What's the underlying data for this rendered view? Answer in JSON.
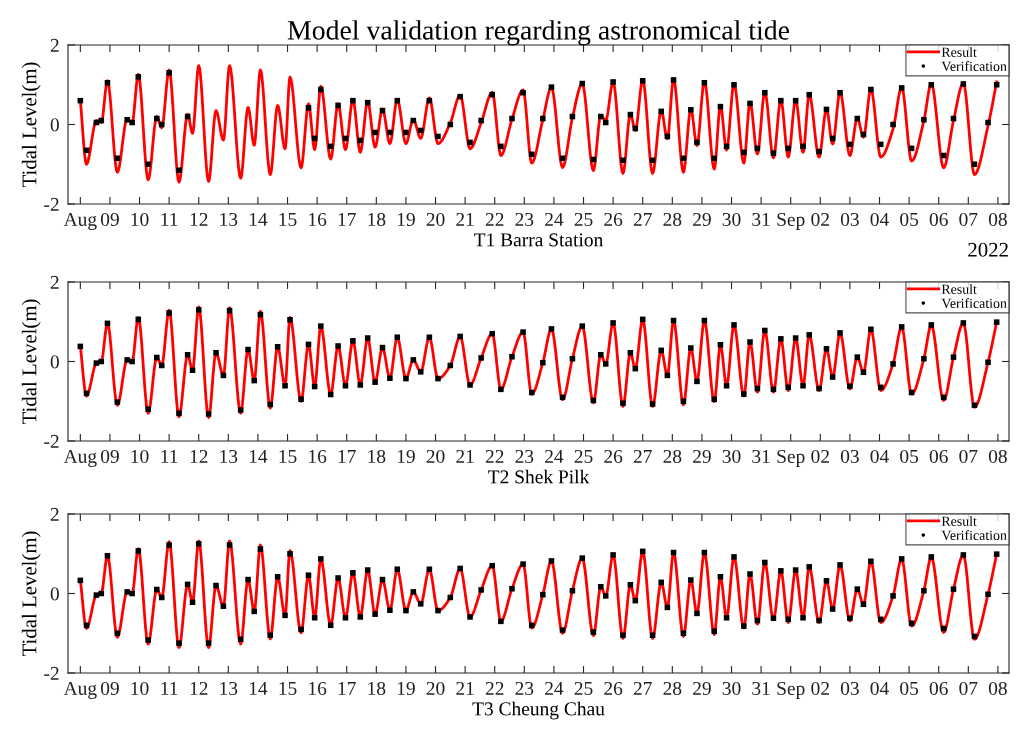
{
  "chart_data": [
    {
      "type": "line",
      "title": "Model validation regarding astronomical tide",
      "xlabel": "T1 Barra Station",
      "ylabel": "Tidal Level(m)",
      "annotations": [
        "2022"
      ],
      "x": [
        "2022-08-08T00:00",
        "2022-08-08T05:00",
        "2022-08-08T13:00",
        "2022-08-08T17:00",
        "2022-08-08T22:00",
        "2022-08-09T06:00",
        "2022-08-09T14:00",
        "2022-08-09T18:00",
        "2022-08-09T23:00",
        "2022-08-10T07:00",
        "2022-08-10T14:00",
        "2022-08-10T18:00",
        "2022-08-11T00:00",
        "2022-08-11T08:00",
        "2022-08-11T15:00",
        "2022-08-11T19:00",
        "2022-08-12T00:00",
        "2022-08-12T08:00",
        "2022-08-12T14:00",
        "2022-08-12T20:00",
        "2022-08-13T01:00",
        "2022-08-13T10:00",
        "2022-08-13T16:00",
        "2022-08-13T21:00",
        "2022-08-14T02:00",
        "2022-08-14T10:00",
        "2022-08-14T16:00",
        "2022-08-14T22:00",
        "2022-08-15T02:00",
        "2022-08-15T11:00",
        "2022-08-15T17:00",
        "2022-08-15T22:00",
        "2022-08-16T03:00",
        "2022-08-16T11:00",
        "2022-08-16T17:00",
        "2022-08-16T23:00",
        "2022-08-17T05:00",
        "2022-08-17T11:00",
        "2022-08-17T17:00",
        "2022-08-17T23:00",
        "2022-08-18T05:00",
        "2022-08-18T11:00",
        "2022-08-18T17:00",
        "2022-08-19T00:00",
        "2022-08-19T06:00",
        "2022-08-19T12:00",
        "2022-08-19T19:00",
        "2022-08-20T02:00",
        "2022-08-20T12:00",
        "2022-08-20T20:00",
        "2022-08-21T04:00",
        "2022-08-21T13:00",
        "2022-08-21T22:00",
        "2022-08-22T05:00",
        "2022-08-22T14:00",
        "2022-08-22T23:00",
        "2022-08-23T06:00",
        "2022-08-23T15:00",
        "2022-08-23T22:00",
        "2022-08-24T07:00",
        "2022-08-24T15:00",
        "2022-08-24T23:00",
        "2022-08-25T08:00",
        "2022-08-25T14:00",
        "2022-08-25T18:00",
        "2022-08-26T00:00",
        "2022-08-26T08:00",
        "2022-08-26T14:00",
        "2022-08-26T18:00",
        "2022-08-27T00:00",
        "2022-08-27T08:00",
        "2022-08-27T15:00",
        "2022-08-27T20:00",
        "2022-08-28T01:00",
        "2022-08-28T09:00",
        "2022-08-28T15:00",
        "2022-08-28T20:00",
        "2022-08-29T02:00",
        "2022-08-29T10:00",
        "2022-08-29T15:00",
        "2022-08-29T20:00",
        "2022-08-30T02:00",
        "2022-08-30T10:00",
        "2022-08-30T15:00",
        "2022-08-30T21:00",
        "2022-08-31T03:00",
        "2022-08-31T10:00",
        "2022-08-31T16:00",
        "2022-08-31T22:00",
        "2022-09-01T04:00",
        "2022-09-01T10:00",
        "2022-09-01T15:00",
        "2022-09-01T23:00",
        "2022-09-02T05:00",
        "2022-09-02T10:00",
        "2022-09-02T16:00",
        "2022-09-03T00:00",
        "2022-09-03T06:00",
        "2022-09-03T11:00",
        "2022-09-03T17:00",
        "2022-09-04T01:00",
        "2022-09-04T11:00",
        "2022-09-04T18:00",
        "2022-09-05T02:00",
        "2022-09-05T12:00",
        "2022-09-05T18:00",
        "2022-09-06T04:00",
        "2022-09-06T12:00",
        "2022-09-06T20:00",
        "2022-09-07T05:00",
        "2022-09-07T16:00",
        "2022-09-07T23:00"
      ],
      "xlim": [
        "2022-08-07T14:00",
        "2022-09-08T09:00"
      ],
      "xticks": [
        {
          "value": "2022-08-08",
          "label": "Aug"
        },
        {
          "value": "2022-08-09",
          "label": "09"
        },
        {
          "value": "2022-08-10",
          "label": "10"
        },
        {
          "value": "2022-08-11",
          "label": "11"
        },
        {
          "value": "2022-08-12",
          "label": "12"
        },
        {
          "value": "2022-08-13",
          "label": "13"
        },
        {
          "value": "2022-08-14",
          "label": "14"
        },
        {
          "value": "2022-08-15",
          "label": "15"
        },
        {
          "value": "2022-08-16",
          "label": "16"
        },
        {
          "value": "2022-08-17",
          "label": "17"
        },
        {
          "value": "2022-08-18",
          "label": "18"
        },
        {
          "value": "2022-08-19",
          "label": "19"
        },
        {
          "value": "2022-08-20",
          "label": "20"
        },
        {
          "value": "2022-08-21",
          "label": "21"
        },
        {
          "value": "2022-08-22",
          "label": "22"
        },
        {
          "value": "2022-08-23",
          "label": "23"
        },
        {
          "value": "2022-08-24",
          "label": "24"
        },
        {
          "value": "2022-08-25",
          "label": "25"
        },
        {
          "value": "2022-08-26",
          "label": "26"
        },
        {
          "value": "2022-08-27",
          "label": "27"
        },
        {
          "value": "2022-08-28",
          "label": "28"
        },
        {
          "value": "2022-08-29",
          "label": "29"
        },
        {
          "value": "2022-08-30",
          "label": "30"
        },
        {
          "value": "2022-08-31",
          "label": "31"
        },
        {
          "value": "2022-09-01",
          "label": "Sep"
        },
        {
          "value": "2022-09-02",
          "label": "02"
        },
        {
          "value": "2022-09-03",
          "label": "03"
        },
        {
          "value": "2022-09-04",
          "label": "04"
        },
        {
          "value": "2022-09-05",
          "label": "05"
        },
        {
          "value": "2022-09-06",
          "label": "06"
        },
        {
          "value": "2022-09-07",
          "label": "07"
        },
        {
          "value": "2022-09-08",
          "label": "08"
        }
      ],
      "ylim": [
        -2,
        2
      ],
      "yticks": [
        -2,
        0,
        2
      ],
      "legend": "top right",
      "series": [
        {
          "name": "Result",
          "color": "#ff0000",
          "marker": "none",
          "values": [
            0.6,
            -1.0,
            0.1,
            0.05,
            1.1,
            -1.2,
            0.15,
            0.05,
            1.26,
            -1.39,
            0.2,
            -0.08,
            1.37,
            -1.45,
            0.26,
            -0.22,
            1.48,
            -1.43,
            0.35,
            -0.39,
            1.48,
            -1.35,
            0.43,
            -0.52,
            1.37,
            -1.26,
            0.48,
            -0.61,
            1.19,
            -1.09,
            0.52,
            -0.63,
            0.96,
            -0.87,
            0.52,
            -0.63,
            0.63,
            -0.7,
            0.58,
            -0.57,
            0.39,
            -0.48,
            0.63,
            -0.48,
            0.13,
            -0.35,
            0.67,
            -0.48,
            0.04,
            0.74,
            -0.61,
            0.04,
            0.81,
            -0.78,
            0.13,
            0.87,
            -0.97,
            0.12,
            0.94,
            -1.08,
            0.17,
            1.03,
            -1.16,
            0.23,
            0.1,
            1.07,
            -1.23,
            0.27,
            -0.15,
            1.13,
            -1.23,
            0.35,
            -0.36,
            1.15,
            -1.2,
            0.39,
            -0.53,
            1.09,
            -1.12,
            0.48,
            -0.64,
            1.03,
            -0.97,
            0.56,
            -0.74,
            0.82,
            -0.84,
            0.62,
            -0.82,
            0.62,
            -0.7,
            0.76,
            -0.82,
            0.39,
            -0.49,
            0.82,
            -0.78,
            0.17,
            -0.32,
            0.9,
            -0.82,
            -0.11,
            0.94,
            -0.92,
            0.1,
            1.03,
            -1.09,
            0.1,
            1.04,
            -1.26,
            -0.03,
            1.07
          ]
        },
        {
          "name": "Verification",
          "color": "#000000",
          "type": "scatter",
          "marker": "square",
          "values": [
            0.6,
            -0.65,
            0.05,
            0.1,
            1.05,
            -0.85,
            0.12,
            0.05,
            1.2,
            -1.0,
            0.15,
            0.0,
            1.3,
            -1.15,
            0.2,
            null,
            null,
            null,
            null,
            null,
            null,
            null,
            null,
            null,
            null,
            null,
            null,
            null,
            null,
            null,
            0.42,
            -0.35,
            0.88,
            -0.55,
            0.48,
            -0.35,
            0.6,
            -0.4,
            0.55,
            -0.2,
            0.35,
            -0.2,
            0.6,
            -0.2,
            0.1,
            -0.15,
            0.6,
            -0.3,
            0.0,
            0.7,
            -0.45,
            0.1,
            0.75,
            -0.55,
            0.15,
            0.8,
            -0.75,
            0.15,
            0.94,
            -0.85,
            0.2,
            1.03,
            -0.88,
            0.2,
            0.05,
            1.07,
            -0.9,
            0.25,
            -0.1,
            1.1,
            -0.9,
            0.33,
            -0.3,
            1.12,
            -0.85,
            0.37,
            -0.45,
            1.05,
            -0.85,
            0.45,
            -0.55,
            1.0,
            -0.7,
            0.53,
            -0.6,
            0.8,
            -0.72,
            0.6,
            -0.6,
            0.6,
            -0.55,
            0.75,
            -0.68,
            0.38,
            -0.35,
            0.8,
            -0.5,
            0.15,
            -0.25,
            0.88,
            -0.5,
            0.0,
            0.92,
            -0.6,
            0.12,
            1.0,
            -0.78,
            0.15,
            1.02,
            -1.0,
            0.05,
            1.0
          ]
        }
      ]
    },
    {
      "type": "line",
      "xlabel": "T2 Shek Pilk",
      "ylabel": "Tidal Level(m)",
      "x": [
        "2022-08-08T00:00",
        "2022-08-08T05:00",
        "2022-08-08T13:00",
        "2022-08-08T17:00",
        "2022-08-08T22:00",
        "2022-08-09T06:00",
        "2022-08-09T14:00",
        "2022-08-09T18:00",
        "2022-08-09T23:00",
        "2022-08-10T07:00",
        "2022-08-10T14:00",
        "2022-08-10T18:00",
        "2022-08-11T00:00",
        "2022-08-11T08:00",
        "2022-08-11T15:00",
        "2022-08-11T19:00",
        "2022-08-12T00:00",
        "2022-08-12T08:00",
        "2022-08-12T14:00",
        "2022-08-12T20:00",
        "2022-08-13T01:00",
        "2022-08-13T10:00",
        "2022-08-13T16:00",
        "2022-08-13T21:00",
        "2022-08-14T02:00",
        "2022-08-14T10:00",
        "2022-08-14T16:00",
        "2022-08-14T22:00",
        "2022-08-15T02:00",
        "2022-08-15T11:00",
        "2022-08-15T17:00",
        "2022-08-15T22:00",
        "2022-08-16T03:00",
        "2022-08-16T11:00",
        "2022-08-16T17:00",
        "2022-08-16T23:00",
        "2022-08-17T05:00",
        "2022-08-17T11:00",
        "2022-08-17T17:00",
        "2022-08-17T23:00",
        "2022-08-18T05:00",
        "2022-08-18T11:00",
        "2022-08-18T17:00",
        "2022-08-19T00:00",
        "2022-08-19T06:00",
        "2022-08-19T12:00",
        "2022-08-19T19:00",
        "2022-08-20T02:00",
        "2022-08-20T12:00",
        "2022-08-20T20:00",
        "2022-08-21T04:00",
        "2022-08-21T13:00",
        "2022-08-21T22:00",
        "2022-08-22T05:00",
        "2022-08-22T14:00",
        "2022-08-22T23:00",
        "2022-08-23T06:00",
        "2022-08-23T15:00",
        "2022-08-23T22:00",
        "2022-08-24T07:00",
        "2022-08-24T15:00",
        "2022-08-24T23:00",
        "2022-08-25T08:00",
        "2022-08-25T14:00",
        "2022-08-25T18:00",
        "2022-08-26T00:00",
        "2022-08-26T08:00",
        "2022-08-26T14:00",
        "2022-08-26T18:00",
        "2022-08-27T00:00",
        "2022-08-27T08:00",
        "2022-08-27T15:00",
        "2022-08-27T20:00",
        "2022-08-28T01:00",
        "2022-08-28T09:00",
        "2022-08-28T15:00",
        "2022-08-28T20:00",
        "2022-08-29T02:00",
        "2022-08-29T10:00",
        "2022-08-29T15:00",
        "2022-08-29T20:00",
        "2022-08-30T02:00",
        "2022-08-30T10:00",
        "2022-08-30T15:00",
        "2022-08-30T21:00",
        "2022-08-31T03:00",
        "2022-08-31T10:00",
        "2022-08-31T16:00",
        "2022-08-31T22:00",
        "2022-09-01T04:00",
        "2022-09-01T10:00",
        "2022-09-01T15:00",
        "2022-09-01T23:00",
        "2022-09-02T05:00",
        "2022-09-02T10:00",
        "2022-09-02T16:00",
        "2022-09-03T00:00",
        "2022-09-03T06:00",
        "2022-09-03T11:00",
        "2022-09-03T17:00",
        "2022-09-04T01:00",
        "2022-09-04T11:00",
        "2022-09-04T18:00",
        "2022-09-05T02:00",
        "2022-09-05T12:00",
        "2022-09-05T18:00",
        "2022-09-06T04:00",
        "2022-09-06T12:00",
        "2022-09-06T20:00",
        "2022-09-07T05:00",
        "2022-09-07T16:00",
        "2022-09-07T23:00"
      ],
      "xlim": [
        "2022-08-07T14:00",
        "2022-09-08T09:00"
      ],
      "xticks": [
        {
          "value": "2022-08-08",
          "label": "Aug"
        },
        {
          "value": "2022-08-09",
          "label": "09"
        },
        {
          "value": "2022-08-10",
          "label": "10"
        },
        {
          "value": "2022-08-11",
          "label": "11"
        },
        {
          "value": "2022-08-12",
          "label": "12"
        },
        {
          "value": "2022-08-13",
          "label": "13"
        },
        {
          "value": "2022-08-14",
          "label": "14"
        },
        {
          "value": "2022-08-15",
          "label": "15"
        },
        {
          "value": "2022-08-16",
          "label": "16"
        },
        {
          "value": "2022-08-17",
          "label": "17"
        },
        {
          "value": "2022-08-18",
          "label": "18"
        },
        {
          "value": "2022-08-19",
          "label": "19"
        },
        {
          "value": "2022-08-20",
          "label": "20"
        },
        {
          "value": "2022-08-21",
          "label": "21"
        },
        {
          "value": "2022-08-22",
          "label": "22"
        },
        {
          "value": "2022-08-23",
          "label": "23"
        },
        {
          "value": "2022-08-24",
          "label": "24"
        },
        {
          "value": "2022-08-25",
          "label": "25"
        },
        {
          "value": "2022-08-26",
          "label": "26"
        },
        {
          "value": "2022-08-27",
          "label": "27"
        },
        {
          "value": "2022-08-28",
          "label": "28"
        },
        {
          "value": "2022-08-29",
          "label": "29"
        },
        {
          "value": "2022-08-30",
          "label": "30"
        },
        {
          "value": "2022-08-31",
          "label": "31"
        },
        {
          "value": "2022-09-01",
          "label": "Sep"
        },
        {
          "value": "2022-09-02",
          "label": "02"
        },
        {
          "value": "2022-09-03",
          "label": "03"
        },
        {
          "value": "2022-09-04",
          "label": "04"
        },
        {
          "value": "2022-09-05",
          "label": "05"
        },
        {
          "value": "2022-09-06",
          "label": "06"
        },
        {
          "value": "2022-09-07",
          "label": "07"
        },
        {
          "value": "2022-09-08",
          "label": "08"
        }
      ],
      "ylim": [
        -2,
        2
      ],
      "yticks": [
        -2,
        0,
        2
      ],
      "legend": "top right",
      "series": [
        {
          "name": "Result",
          "color": "#ff0000",
          "marker": "none",
          "values": [
            0.38,
            -0.87,
            -0.04,
            0.0,
            0.96,
            -1.1,
            0.04,
            0.0,
            1.11,
            -1.3,
            0.1,
            -0.1,
            1.29,
            -1.39,
            0.17,
            -0.22,
            1.37,
            -1.41,
            0.22,
            -0.35,
            1.35,
            -1.3,
            0.3,
            -0.48,
            1.26,
            -1.17,
            0.37,
            -0.61,
            1.11,
            -1.0,
            0.43,
            -0.63,
            0.89,
            -0.83,
            0.39,
            -0.61,
            0.52,
            -0.59,
            0.59,
            -0.52,
            0.35,
            -0.42,
            0.61,
            -0.43,
            0.04,
            -0.26,
            0.61,
            -0.43,
            -0.1,
            0.63,
            -0.59,
            0.09,
            0.7,
            -0.7,
            0.12,
            0.74,
            -0.82,
            -0.03,
            0.82,
            -0.96,
            0.07,
            0.89,
            -1.04,
            0.17,
            -0.06,
            0.97,
            -1.13,
            0.22,
            -0.18,
            1.06,
            -1.13,
            0.28,
            -0.35,
            1.03,
            -1.09,
            0.34,
            -0.5,
            1.03,
            -1.01,
            0.42,
            -0.61,
            0.92,
            -0.87,
            0.49,
            -0.77,
            0.78,
            -0.77,
            0.57,
            -0.73,
            0.59,
            -0.61,
            0.67,
            -0.73,
            0.32,
            -0.39,
            0.72,
            -0.69,
            0.11,
            -0.27,
            0.81,
            -0.73,
            -0.06,
            0.87,
            -0.82,
            0.07,
            0.92,
            -0.98,
            0.11,
            0.97,
            -1.15,
            -0.02,
            0.99
          ]
        },
        {
          "name": "Verification",
          "color": "#000000",
          "type": "scatter",
          "marker": "square",
          "values": [
            0.38,
            -0.8,
            -0.04,
            0.0,
            0.96,
            -1.02,
            0.04,
            0.0,
            1.06,
            -1.2,
            0.1,
            -0.1,
            1.22,
            -1.3,
            0.17,
            -0.22,
            1.3,
            -1.32,
            0.22,
            -0.35,
            1.28,
            -1.22,
            0.3,
            -0.48,
            1.18,
            -1.08,
            0.37,
            -0.61,
            1.05,
            -0.95,
            0.43,
            -0.63,
            0.89,
            -0.83,
            0.39,
            -0.61,
            0.52,
            -0.59,
            0.59,
            -0.52,
            0.35,
            -0.42,
            0.61,
            -0.43,
            0.04,
            -0.26,
            0.61,
            -0.43,
            -0.1,
            0.63,
            -0.59,
            0.09,
            0.7,
            -0.7,
            0.12,
            0.74,
            -0.78,
            -0.03,
            0.82,
            -0.9,
            0.07,
            0.89,
            -0.98,
            0.17,
            -0.06,
            0.97,
            -1.05,
            0.22,
            -0.18,
            1.06,
            -1.07,
            0.28,
            -0.35,
            1.03,
            -1.0,
            0.34,
            -0.5,
            1.03,
            -0.95,
            0.42,
            -0.61,
            0.92,
            -0.82,
            0.49,
            -0.68,
            0.78,
            -0.7,
            0.57,
            -0.65,
            0.59,
            -0.61,
            0.67,
            -0.68,
            0.32,
            -0.39,
            0.72,
            -0.62,
            0.11,
            -0.27,
            0.81,
            -0.65,
            -0.06,
            0.87,
            -0.78,
            0.07,
            0.92,
            -0.9,
            0.11,
            0.97,
            -1.1,
            -0.02,
            0.99
          ]
        }
      ]
    },
    {
      "type": "line",
      "xlabel": "T3 Cheung Chau",
      "ylabel": "Tidal Level(m)",
      "x": [
        "2022-08-08T00:00",
        "2022-08-08T05:00",
        "2022-08-08T13:00",
        "2022-08-08T17:00",
        "2022-08-08T22:00",
        "2022-08-09T06:00",
        "2022-08-09T14:00",
        "2022-08-09T18:00",
        "2022-08-09T23:00",
        "2022-08-10T07:00",
        "2022-08-10T14:00",
        "2022-08-10T18:00",
        "2022-08-11T00:00",
        "2022-08-11T08:00",
        "2022-08-11T15:00",
        "2022-08-11T19:00",
        "2022-08-12T00:00",
        "2022-08-12T08:00",
        "2022-08-12T14:00",
        "2022-08-12T20:00",
        "2022-08-13T01:00",
        "2022-08-13T10:00",
        "2022-08-13T16:00",
        "2022-08-13T21:00",
        "2022-08-14T02:00",
        "2022-08-14T10:00",
        "2022-08-14T16:00",
        "2022-08-14T22:00",
        "2022-08-15T02:00",
        "2022-08-15T11:00",
        "2022-08-15T17:00",
        "2022-08-15T22:00",
        "2022-08-16T03:00",
        "2022-08-16T11:00",
        "2022-08-16T17:00",
        "2022-08-16T23:00",
        "2022-08-17T05:00",
        "2022-08-17T11:00",
        "2022-08-17T17:00",
        "2022-08-17T23:00",
        "2022-08-18T05:00",
        "2022-08-18T11:00",
        "2022-08-18T17:00",
        "2022-08-19T00:00",
        "2022-08-19T06:00",
        "2022-08-19T12:00",
        "2022-08-19T19:00",
        "2022-08-20T02:00",
        "2022-08-20T12:00",
        "2022-08-20T20:00",
        "2022-08-21T04:00",
        "2022-08-21T13:00",
        "2022-08-21T22:00",
        "2022-08-22T05:00",
        "2022-08-22T14:00",
        "2022-08-22T23:00",
        "2022-08-23T06:00",
        "2022-08-23T15:00",
        "2022-08-23T22:00",
        "2022-08-24T07:00",
        "2022-08-24T15:00",
        "2022-08-24T23:00",
        "2022-08-25T08:00",
        "2022-08-25T14:00",
        "2022-08-25T18:00",
        "2022-08-26T00:00",
        "2022-08-26T08:00",
        "2022-08-26T14:00",
        "2022-08-26T18:00",
        "2022-08-27T00:00",
        "2022-08-27T08:00",
        "2022-08-27T15:00",
        "2022-08-27T20:00",
        "2022-08-28T01:00",
        "2022-08-28T09:00",
        "2022-08-28T15:00",
        "2022-08-28T20:00",
        "2022-08-29T02:00",
        "2022-08-29T10:00",
        "2022-08-29T15:00",
        "2022-08-29T20:00",
        "2022-08-30T02:00",
        "2022-08-30T10:00",
        "2022-08-30T15:00",
        "2022-08-30T21:00",
        "2022-08-31T03:00",
        "2022-08-31T10:00",
        "2022-08-31T16:00",
        "2022-08-31T22:00",
        "2022-09-01T04:00",
        "2022-09-01T10:00",
        "2022-09-01T15:00",
        "2022-09-01T23:00",
        "2022-09-02T05:00",
        "2022-09-02T10:00",
        "2022-09-02T16:00",
        "2022-09-03T00:00",
        "2022-09-03T06:00",
        "2022-09-03T11:00",
        "2022-09-03T17:00",
        "2022-09-04T01:00",
        "2022-09-04T11:00",
        "2022-09-04T18:00",
        "2022-09-05T02:00",
        "2022-09-05T12:00",
        "2022-09-05T18:00",
        "2022-09-06T04:00",
        "2022-09-06T12:00",
        "2022-09-06T20:00",
        "2022-09-07T05:00",
        "2022-09-07T16:00",
        "2022-09-07T23:00"
      ],
      "xlim": [
        "2022-08-07T14:00",
        "2022-09-08T09:00"
      ],
      "xticks": [
        {
          "value": "2022-08-08",
          "label": "Aug"
        },
        {
          "value": "2022-08-09",
          "label": "09"
        },
        {
          "value": "2022-08-10",
          "label": "10"
        },
        {
          "value": "2022-08-11",
          "label": "11"
        },
        {
          "value": "2022-08-12",
          "label": "12"
        },
        {
          "value": "2022-08-13",
          "label": "13"
        },
        {
          "value": "2022-08-14",
          "label": "14"
        },
        {
          "value": "2022-08-15",
          "label": "15"
        },
        {
          "value": "2022-08-16",
          "label": "16"
        },
        {
          "value": "2022-08-17",
          "label": "17"
        },
        {
          "value": "2022-08-18",
          "label": "18"
        },
        {
          "value": "2022-08-19",
          "label": "19"
        },
        {
          "value": "2022-08-20",
          "label": "20"
        },
        {
          "value": "2022-08-21",
          "label": "21"
        },
        {
          "value": "2022-08-22",
          "label": "22"
        },
        {
          "value": "2022-08-23",
          "label": "23"
        },
        {
          "value": "2022-08-24",
          "label": "24"
        },
        {
          "value": "2022-08-25",
          "label": "25"
        },
        {
          "value": "2022-08-26",
          "label": "26"
        },
        {
          "value": "2022-08-27",
          "label": "27"
        },
        {
          "value": "2022-08-28",
          "label": "28"
        },
        {
          "value": "2022-08-29",
          "label": "29"
        },
        {
          "value": "2022-08-30",
          "label": "30"
        },
        {
          "value": "2022-08-31",
          "label": "31"
        },
        {
          "value": "2022-09-01",
          "label": "Sep"
        },
        {
          "value": "2022-09-02",
          "label": "02"
        },
        {
          "value": "2022-09-03",
          "label": "03"
        },
        {
          "value": "2022-09-04",
          "label": "04"
        },
        {
          "value": "2022-09-05",
          "label": "05"
        },
        {
          "value": "2022-09-06",
          "label": "06"
        },
        {
          "value": "2022-09-07",
          "label": "07"
        },
        {
          "value": "2022-09-08",
          "label": "08"
        }
      ],
      "ylim": [
        -2,
        2
      ],
      "yticks": [
        -2,
        0,
        2
      ],
      "legend": "top right",
      "series": [
        {
          "name": "Result",
          "color": "#ff0000",
          "marker": "none",
          "values": [
            0.33,
            -0.88,
            -0.04,
            0.0,
            0.95,
            -1.1,
            0.04,
            0.0,
            1.13,
            -1.27,
            0.1,
            -0.1,
            1.3,
            -1.36,
            0.23,
            -0.22,
            1.32,
            -1.36,
            0.2,
            -0.32,
            1.32,
            -1.27,
            0.35,
            -0.45,
            1.22,
            -1.14,
            0.42,
            -0.55,
            1.08,
            -0.99,
            0.46,
            -0.61,
            0.87,
            -0.8,
            0.39,
            -0.61,
            0.52,
            -0.59,
            0.59,
            -0.52,
            0.35,
            -0.42,
            0.61,
            -0.43,
            0.04,
            -0.26,
            0.61,
            -0.43,
            -0.1,
            0.63,
            -0.59,
            0.09,
            0.7,
            -0.7,
            0.12,
            0.74,
            -0.87,
            -0.03,
            0.82,
            -1.0,
            0.07,
            0.89,
            -1.06,
            0.17,
            -0.06,
            0.97,
            -1.13,
            0.22,
            -0.18,
            1.06,
            -1.13,
            0.28,
            -0.35,
            1.03,
            -1.08,
            0.34,
            -0.5,
            1.03,
            -1.03,
            0.42,
            -0.61,
            0.92,
            -0.87,
            0.49,
            -0.77,
            0.78,
            -0.66,
            0.57,
            -0.73,
            0.59,
            -0.61,
            0.67,
            -0.73,
            0.32,
            -0.39,
            0.72,
            -0.69,
            0.11,
            -0.27,
            0.81,
            -0.73,
            -0.06,
            0.87,
            -0.82,
            0.07,
            0.92,
            -0.98,
            0.11,
            0.97,
            -1.15,
            -0.02,
            0.99
          ]
        },
        {
          "name": "Verification",
          "color": "#000000",
          "type": "scatter",
          "marker": "square",
          "values": [
            0.33,
            -0.8,
            -0.04,
            0.0,
            0.95,
            -1.0,
            0.04,
            0.0,
            1.07,
            -1.17,
            0.1,
            -0.1,
            1.22,
            -1.25,
            0.23,
            -0.22,
            1.25,
            -1.25,
            0.2,
            -0.32,
            1.22,
            -1.15,
            0.35,
            -0.45,
            1.12,
            -1.05,
            0.42,
            -0.55,
            1.0,
            -0.9,
            0.46,
            -0.61,
            0.87,
            -0.8,
            0.39,
            -0.61,
            0.52,
            -0.59,
            0.59,
            -0.52,
            0.35,
            -0.42,
            0.61,
            -0.43,
            0.04,
            -0.26,
            0.61,
            -0.43,
            -0.1,
            0.63,
            -0.59,
            0.09,
            0.7,
            -0.7,
            0.12,
            0.74,
            -0.8,
            -0.03,
            0.82,
            -0.92,
            0.07,
            0.89,
            -0.97,
            0.17,
            -0.06,
            0.97,
            -1.05,
            0.22,
            -0.18,
            1.06,
            -1.05,
            0.28,
            -0.35,
            1.03,
            -1.0,
            0.34,
            -0.5,
            1.03,
            -0.95,
            0.42,
            -0.61,
            0.92,
            -0.82,
            0.49,
            -0.68,
            0.78,
            -0.62,
            0.57,
            -0.65,
            0.59,
            -0.61,
            0.67,
            -0.68,
            0.32,
            -0.39,
            0.72,
            -0.62,
            0.11,
            -0.27,
            0.81,
            -0.65,
            -0.06,
            0.87,
            -0.75,
            0.07,
            0.92,
            -0.88,
            0.11,
            0.97,
            -1.08,
            -0.02,
            0.99
          ]
        }
      ]
    }
  ]
}
